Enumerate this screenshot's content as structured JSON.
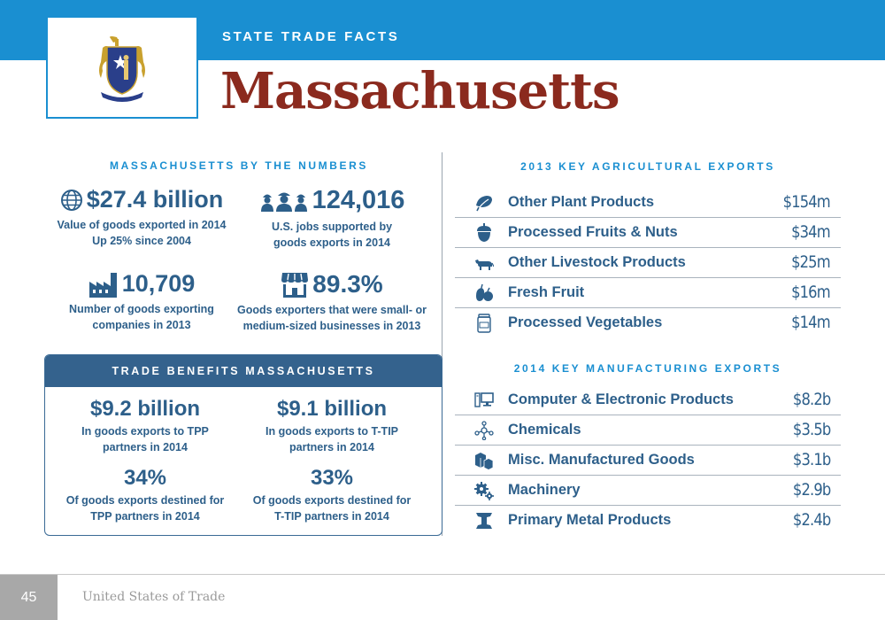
{
  "header": {
    "kicker": "STATE TRADE FACTS",
    "state_name": "Massachusetts",
    "flag_icon": "massachusetts-seal-icon"
  },
  "by_numbers": {
    "heading": "MASSACHUSETTS BY THE NUMBERS",
    "stats": [
      {
        "icon": "globe-icon",
        "value": "$27.4 billion",
        "desc_line1": "Value of goods exported in 2014",
        "desc_line2": "Up 25% since 2004"
      },
      {
        "icon": "workers-icon",
        "value": "124,016",
        "desc_line1": "U.S. jobs supported by",
        "desc_line2": "goods exports in 2014"
      },
      {
        "icon": "factory-icon",
        "value": "10,709",
        "desc_line1": "Number of goods exporting",
        "desc_line2": "companies in 2013"
      },
      {
        "icon": "storefront-icon",
        "value": "89.3%",
        "desc_line1": "Goods exporters that were small- or",
        "desc_line2": "medium-sized businesses in 2013"
      }
    ]
  },
  "trade_benefits": {
    "heading": "TRADE BENEFITS MASSACHUSETTS",
    "stats": [
      {
        "value": "$9.2 billion",
        "desc_line1": "In goods exports to TPP",
        "desc_line2": "partners in 2014"
      },
      {
        "value": "$9.1 billion",
        "desc_line1": "In goods exports to T-TIP",
        "desc_line2": "partners in 2014"
      },
      {
        "value": "34%",
        "desc_line1": "Of goods exports destined for",
        "desc_line2": "TPP partners in 2014"
      },
      {
        "value": "33%",
        "desc_line1": "Of goods exports destined for",
        "desc_line2": "T-TIP partners in 2014"
      }
    ]
  },
  "agricultural": {
    "heading": "2013 KEY AGRICULTURAL EXPORTS",
    "items": [
      {
        "icon": "plant-leaf-icon",
        "name": "Other Plant Products",
        "value": "$154m"
      },
      {
        "icon": "acorn-icon",
        "name": "Processed Fruits & Nuts",
        "value": "$34m"
      },
      {
        "icon": "cow-icon",
        "name": "Other Livestock Products",
        "value": "$25m"
      },
      {
        "icon": "fruit-icon",
        "name": "Fresh Fruit",
        "value": "$16m"
      },
      {
        "icon": "jar-icon",
        "name": "Processed Vegetables",
        "value": "$14m"
      }
    ]
  },
  "manufacturing": {
    "heading": "2014 KEY MANUFACTURING EXPORTS",
    "items": [
      {
        "icon": "computer-icon",
        "name": "Computer & Electronic Products",
        "value": "$8.2b"
      },
      {
        "icon": "molecule-icon",
        "name": "Chemicals",
        "value": "$3.5b"
      },
      {
        "icon": "boxes-icon",
        "name": "Misc. Manufactured Goods",
        "value": "$3.1b"
      },
      {
        "icon": "gears-icon",
        "name": "Machinery",
        "value": "$2.9b"
      },
      {
        "icon": "i-beam-icon",
        "name": "Primary Metal Products",
        "value": "$2.4b"
      }
    ]
  },
  "footer": {
    "page_number": "45",
    "publication": "United States of Trade"
  },
  "colors": {
    "blue_bar": "#1a8fd1",
    "navy": "#2d5f8a",
    "title_red": "#8b2a1e",
    "panel_head": "#34628d"
  }
}
